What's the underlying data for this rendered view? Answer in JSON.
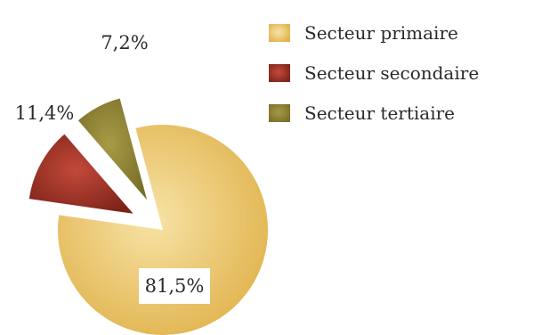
{
  "chart_data": {
    "type": "pie",
    "title": "",
    "slices": [
      {
        "label": "Secteur primaire",
        "value": 81.5,
        "value_label": "81,5%",
        "color": "#e3b64d",
        "exploded": false
      },
      {
        "label": "Secteur secondaire",
        "value": 11.4,
        "value_label": "11,4%",
        "color": "#8c2a1f",
        "exploded": true
      },
      {
        "label": "Secteur tertiaire",
        "value": 7.2,
        "value_label": "7,2%",
        "color": "#857a2e",
        "exploded": true
      }
    ],
    "legend": {
      "position": "top-right"
    }
  }
}
